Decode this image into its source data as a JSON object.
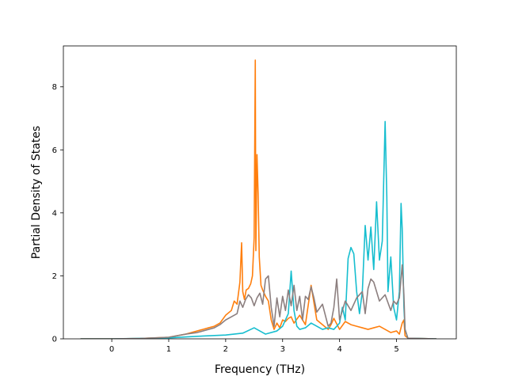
{
  "chart_data": {
    "type": "line",
    "xlabel": "Frequency (THz)",
    "ylabel": "Partial Density of States",
    "xlim": [
      -0.85,
      6.05
    ],
    "ylim": [
      0,
      9.3
    ],
    "xticks": [
      0,
      1,
      2,
      3,
      4,
      5
    ],
    "yticks": [
      0,
      2,
      4,
      6,
      8
    ],
    "grid": false,
    "legend": "none",
    "series": [
      {
        "color": "#ff7f0e",
        "x": [
          -0.55,
          0.0,
          0.5,
          1.0,
          1.3,
          1.5,
          1.7,
          1.8,
          1.9,
          2.0,
          2.1,
          2.15,
          2.2,
          2.25,
          2.28,
          2.3,
          2.33,
          2.36,
          2.4,
          2.44,
          2.47,
          2.5,
          2.52,
          2.53,
          2.55,
          2.57,
          2.59,
          2.6,
          2.62,
          2.65,
          2.7,
          2.75,
          2.8,
          2.85,
          2.9,
          2.95,
          3.0,
          3.05,
          3.1,
          3.15,
          3.2,
          3.3,
          3.4,
          3.5,
          3.6,
          3.7,
          3.8,
          3.85,
          3.9,
          4.0,
          4.1,
          4.2,
          4.3,
          4.4,
          4.5,
          4.6,
          4.7,
          4.8,
          4.9,
          5.0,
          5.05,
          5.1,
          5.13,
          5.15,
          5.2,
          5.7
        ],
        "y": [
          0,
          0,
          0.01,
          0.05,
          0.15,
          0.25,
          0.35,
          0.4,
          0.5,
          0.75,
          0.9,
          1.2,
          1.1,
          1.8,
          3.05,
          1.5,
          1.25,
          1.55,
          1.6,
          1.75,
          2.0,
          3.2,
          8.85,
          2.8,
          5.85,
          4.6,
          2.6,
          2.3,
          1.7,
          1.55,
          1.35,
          1.2,
          0.6,
          0.3,
          0.5,
          0.35,
          0.6,
          0.55,
          0.65,
          0.7,
          0.5,
          0.75,
          0.45,
          1.7,
          0.6,
          0.45,
          0.3,
          0.45,
          0.65,
          0.3,
          0.55,
          0.45,
          0.4,
          0.35,
          0.3,
          0.35,
          0.4,
          0.3,
          0.2,
          0.25,
          0.15,
          0.5,
          0.6,
          0.1,
          0.02,
          0
        ]
      },
      {
        "color": "#17becf",
        "x": [
          -0.55,
          0.0,
          1.0,
          1.5,
          2.0,
          2.3,
          2.5,
          2.7,
          2.9,
          3.0,
          3.1,
          3.15,
          3.2,
          3.25,
          3.3,
          3.4,
          3.5,
          3.6,
          3.7,
          3.8,
          3.9,
          4.0,
          4.05,
          4.1,
          4.15,
          4.2,
          4.25,
          4.3,
          4.35,
          4.4,
          4.45,
          4.5,
          4.55,
          4.6,
          4.65,
          4.7,
          4.75,
          4.8,
          4.83,
          4.85,
          4.9,
          4.95,
          5.0,
          5.05,
          5.08,
          5.1,
          5.13,
          5.15,
          5.2,
          5.7
        ],
        "y": [
          0,
          0,
          0.03,
          0.08,
          0.12,
          0.18,
          0.35,
          0.15,
          0.25,
          0.4,
          0.8,
          2.15,
          0.9,
          0.4,
          0.3,
          0.35,
          0.5,
          0.4,
          0.3,
          0.35,
          0.3,
          0.5,
          1.0,
          0.6,
          2.55,
          2.9,
          2.7,
          1.5,
          0.8,
          1.5,
          3.6,
          2.5,
          3.55,
          2.2,
          4.35,
          2.5,
          3.1,
          6.9,
          4.5,
          1.5,
          2.6,
          1.0,
          0.6,
          1.5,
          4.3,
          3.5,
          1.0,
          0.3,
          0.02,
          0
        ]
      },
      {
        "color": "#8c7f7f",
        "x": [
          -0.55,
          0.0,
          0.5,
          1.0,
          1.3,
          1.5,
          1.7,
          1.8,
          1.9,
          2.0,
          2.1,
          2.2,
          2.25,
          2.3,
          2.35,
          2.4,
          2.45,
          2.5,
          2.55,
          2.6,
          2.65,
          2.7,
          2.75,
          2.8,
          2.85,
          2.9,
          2.95,
          3.0,
          3.05,
          3.1,
          3.15,
          3.2,
          3.25,
          3.3,
          3.35,
          3.4,
          3.45,
          3.5,
          3.55,
          3.6,
          3.7,
          3.8,
          3.85,
          3.9,
          3.95,
          4.0,
          4.1,
          4.2,
          4.3,
          4.4,
          4.45,
          4.5,
          4.55,
          4.6,
          4.7,
          4.8,
          4.9,
          4.95,
          5.0,
          5.05,
          5.1,
          5.13,
          5.15,
          5.2,
          5.7
        ],
        "y": [
          0,
          0,
          0.01,
          0.05,
          0.15,
          0.2,
          0.3,
          0.35,
          0.45,
          0.6,
          0.7,
          0.8,
          1.2,
          1.0,
          1.25,
          1.4,
          1.3,
          1.05,
          1.3,
          1.45,
          1.1,
          1.9,
          2.0,
          1.0,
          0.4,
          1.3,
          0.7,
          1.35,
          0.9,
          1.55,
          1.05,
          1.7,
          0.9,
          1.35,
          0.6,
          1.35,
          1.25,
          1.65,
          1.3,
          0.85,
          1.1,
          0.4,
          0.5,
          1.0,
          1.9,
          0.6,
          1.2,
          0.9,
          1.3,
          1.5,
          0.8,
          1.6,
          1.9,
          1.8,
          1.2,
          1.4,
          0.9,
          1.2,
          1.1,
          1.3,
          2.35,
          1.4,
          0.3,
          0.02,
          0
        ]
      }
    ]
  }
}
